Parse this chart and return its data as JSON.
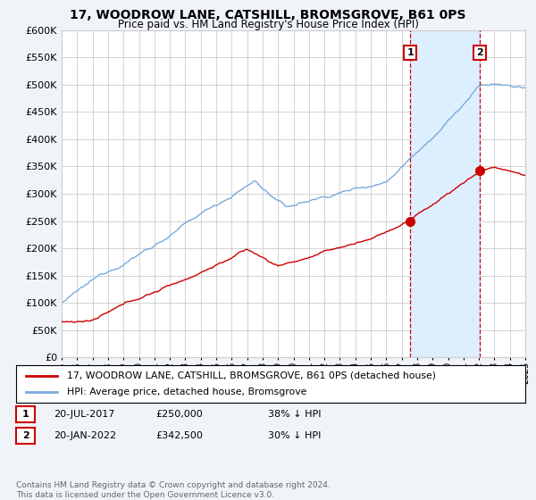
{
  "title": "17, WOODROW LANE, CATSHILL, BROMSGROVE, B61 0PS",
  "subtitle": "Price paid vs. HM Land Registry's House Price Index (HPI)",
  "legend_line1": "17, WOODROW LANE, CATSHILL, BROMSGROVE, B61 0PS (detached house)",
  "legend_line2": "HPI: Average price, detached house, Bromsgrove",
  "annotation1_date": "20-JUL-2017",
  "annotation1_price": "£250,000",
  "annotation1_hpi": "38% ↓ HPI",
  "annotation2_date": "20-JAN-2022",
  "annotation2_price": "£342,500",
  "annotation2_hpi": "30% ↓ HPI",
  "footer": "Contains HM Land Registry data © Crown copyright and database right 2024.\nThis data is licensed under the Open Government Licence v3.0.",
  "house_color": "#cc0000",
  "hpi_color": "#7aaadd",
  "shade_color": "#ddeeff",
  "background_color": "#f0f4f8",
  "plot_bg_color": "#ffffff",
  "ylim": [
    0,
    600000
  ],
  "yticks": [
    0,
    50000,
    100000,
    150000,
    200000,
    250000,
    300000,
    350000,
    400000,
    450000,
    500000,
    550000,
    600000
  ],
  "purchase1_year": 2017.55,
  "purchase1_value": 250000,
  "purchase2_year": 2022.05,
  "purchase2_value": 342500,
  "xmin": 1995,
  "xmax": 2025
}
